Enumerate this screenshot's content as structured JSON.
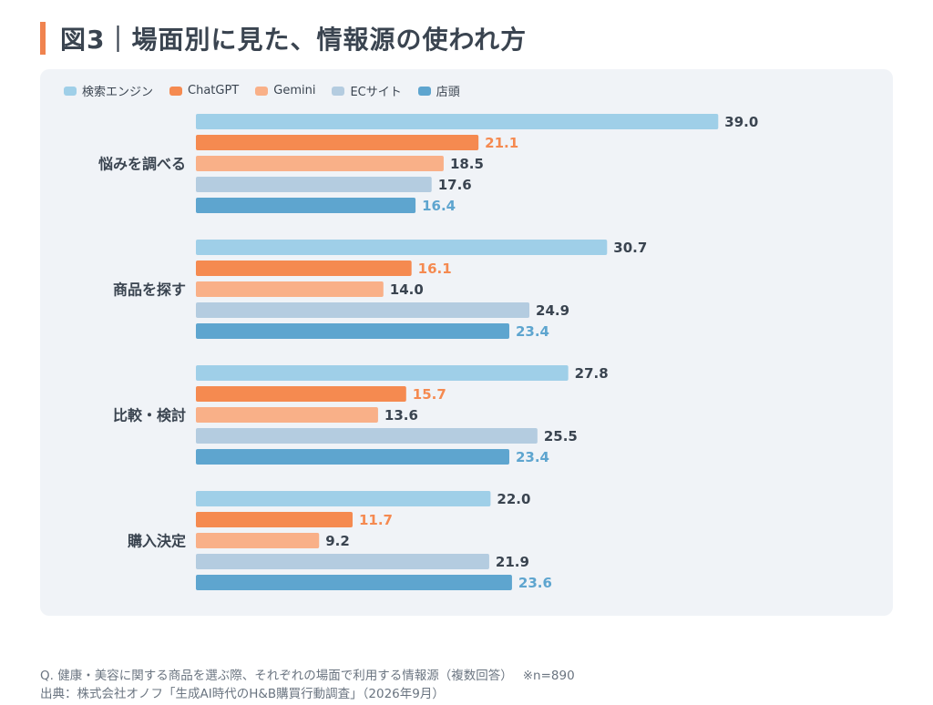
{
  "title": "図3｜場面別に見た、情報源の使われ方",
  "chart_data": {
    "type": "bar",
    "orientation": "horizontal",
    "legend_position": "top-left",
    "grid": false,
    "xlim": [
      0,
      40
    ],
    "series": [
      {
        "name": "検索エンジン",
        "color": "#9fcfe8",
        "label_color": "#3a4450",
        "values": [
          39.0,
          30.7,
          27.8,
          22.0
        ]
      },
      {
        "name": "ChatGPT",
        "color": "#f58a50",
        "label_color": "#f58a50",
        "values": [
          21.1,
          16.1,
          15.7,
          11.7
        ]
      },
      {
        "name": "Gemini",
        "color": "#f9b088",
        "label_color": "#3a4450",
        "values": [
          18.5,
          14.0,
          13.6,
          9.2
        ]
      },
      {
        "name": "ECサイト",
        "color": "#b4cce0",
        "label_color": "#3a4450",
        "values": [
          17.6,
          24.9,
          25.5,
          21.9
        ]
      },
      {
        "name": "店頭",
        "color": "#5ea5cf",
        "label_color": "#5ea5cf",
        "values": [
          16.4,
          23.4,
          23.4,
          23.6
        ]
      }
    ],
    "categories": [
      "悩みを調べる",
      "商品を探す",
      "比較・検討",
      "購入決定"
    ]
  },
  "footnotes": [
    "Q. 健康・美容に関する商品を選ぶ際、それぞれの場面で利用する情報源（複数回答）　 ※n=890",
    "出典：株式会社オノフ「生成AI時代のH&B購買行動調査」（2026年9月）"
  ]
}
